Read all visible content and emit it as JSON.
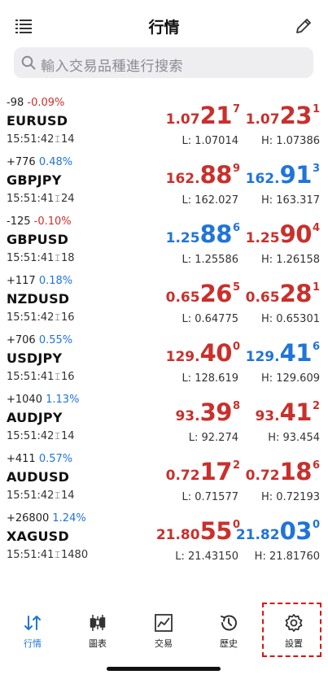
{
  "header": {
    "title": "行情"
  },
  "search": {
    "placeholder": "輸入交易品種進行搜索"
  },
  "quotes": [
    {
      "change": "-98",
      "pct": "-0.09%",
      "symbol": "EURUSD",
      "time": "15:51:42",
      "spread": "14",
      "bid": {
        "pre": "1.07",
        "big": "21",
        "sup": "7"
      },
      "ask": {
        "pre": "1.07",
        "big": "23",
        "sup": "1"
      },
      "low": "L: 1.07014",
      "high": "H: 1.07386"
    },
    {
      "change": "+776",
      "pct": "0.48%",
      "symbol": "GBPJPY",
      "time": "15:51:41",
      "spread": "24",
      "bid": {
        "pre": "162.",
        "big": "88",
        "sup": "9"
      },
      "ask": {
        "pre": "162.",
        "big": "91",
        "sup": "3"
      },
      "low": "L: 162.027",
      "high": "H: 163.317"
    },
    {
      "change": "-125",
      "pct": "-0.10%",
      "symbol": "GBPUSD",
      "time": "15:51:41",
      "spread": "18",
      "bid": {
        "pre": "1.25",
        "big": "88",
        "sup": "6"
      },
      "ask": {
        "pre": "1.25",
        "big": "90",
        "sup": "4"
      },
      "low": "L: 1.25586",
      "high": "H: 1.26158"
    },
    {
      "change": "+117",
      "pct": "0.18%",
      "symbol": "NZDUSD",
      "time": "15:51:42",
      "spread": "16",
      "bid": {
        "pre": "0.65",
        "big": "26",
        "sup": "5"
      },
      "ask": {
        "pre": "0.65",
        "big": "28",
        "sup": "1"
      },
      "low": "L: 0.64775",
      "high": "H: 0.65301"
    },
    {
      "change": "+706",
      "pct": "0.55%",
      "symbol": "USDJPY",
      "time": "15:51:41",
      "spread": "16",
      "bid": {
        "pre": "129.",
        "big": "40",
        "sup": "0"
      },
      "ask": {
        "pre": "129.",
        "big": "41",
        "sup": "6"
      },
      "low": "L: 128.619",
      "high": "H: 129.609"
    },
    {
      "change": "+1040",
      "pct": "1.13%",
      "symbol": "AUDJPY",
      "time": "15:51:42",
      "spread": "14",
      "bid": {
        "pre": "93.",
        "big": "39",
        "sup": "8"
      },
      "ask": {
        "pre": "93.",
        "big": "41",
        "sup": "2"
      },
      "low": "L: 92.274",
      "high": "H: 93.454"
    },
    {
      "change": "+411",
      "pct": "0.57%",
      "symbol": "AUDUSD",
      "time": "15:51:42",
      "spread": "14",
      "bid": {
        "pre": "0.72",
        "big": "17",
        "sup": "2"
      },
      "ask": {
        "pre": "0.72",
        "big": "18",
        "sup": "6"
      },
      "low": "L: 0.71577",
      "high": "H: 0.72193"
    },
    {
      "change": "+26800",
      "pct": "1.24%",
      "symbol": "XAGUSD",
      "time": "15:51:41",
      "spread": "1480",
      "bid": {
        "pre": "21.80",
        "big": "55",
        "sup": "0"
      },
      "ask": {
        "pre": "21.82",
        "big": "03",
        "sup": "0"
      },
      "low": "L: 21.43150",
      "high": "H: 21.81760"
    }
  ],
  "tabs": [
    {
      "label": "行情",
      "icon": "arrows-up-down-icon"
    },
    {
      "label": "圖表",
      "icon": "candlestick-icon"
    },
    {
      "label": "交易",
      "icon": "trend-chart-icon"
    },
    {
      "label": "歷史",
      "icon": "history-icon"
    },
    {
      "label": "設置",
      "icon": "gear-icon"
    }
  ],
  "colors": {
    "down": "#c9302c",
    "up": "#1f75d8",
    "search_bg": "#eeeef1",
    "highlight": "#e01010"
  }
}
